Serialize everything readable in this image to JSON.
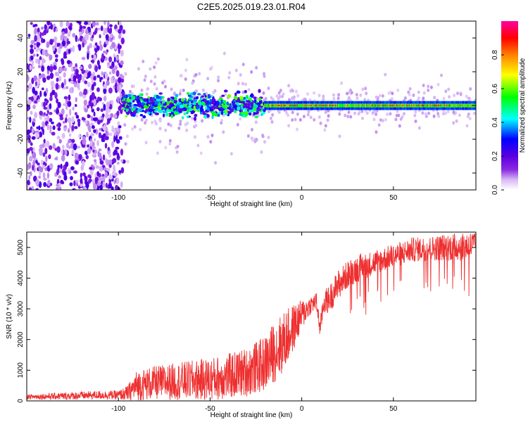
{
  "title": "C2E5.2025.019.23.01.R04",
  "chart_data": [
    {
      "type": "heatmap",
      "xlabel": "Height of straight line (km)",
      "ylabel": "Frequency (Hz)",
      "xlim": [
        -150,
        95
      ],
      "ylim": [
        -50,
        50
      ],
      "xticks": [
        -100,
        -50,
        0,
        50
      ],
      "yticks": [
        -40,
        -20,
        0,
        20,
        40
      ],
      "colorbar": {
        "label": "Normalized spectral amplitude",
        "range": [
          0,
          1
        ],
        "ticks": [
          0.0,
          0.2,
          0.4,
          0.6,
          0.8
        ],
        "colormap": [
          "#ffffff",
          "#d9b8f5",
          "#8a2be2",
          "#5a00e0",
          "#0000ff",
          "#00ffff",
          "#00ff00",
          "#ffff00",
          "#ff8000",
          "#ff0000",
          "#ff00a0"
        ]
      },
      "features": [
        {
          "x_range": [
            -150,
            -97
          ],
          "description": "broadband noise",
          "peak_amplitude": 0.1
        },
        {
          "x_range": [
            -97,
            -20
          ],
          "center_frequency": 0,
          "bandwidth_hz": 12,
          "peak_amplitude": 0.45
        },
        {
          "x_range": [
            -20,
            95
          ],
          "center_frequency": 0,
          "bandwidth_hz": 4,
          "peak_amplitude": 0.95
        }
      ]
    },
    {
      "type": "line",
      "xlabel": "Height of straight line (km)",
      "ylabel": "SNR (10 * v/v)",
      "xlim": [
        -150,
        95
      ],
      "ylim": [
        0,
        5500
      ],
      "xticks": [
        -100,
        -50,
        0,
        50
      ],
      "yticks": [
        0,
        1000,
        2000,
        3000,
        4000,
        5000
      ],
      "series": [
        {
          "color": "#ee3030",
          "x": [
            -150,
            -130,
            -110,
            -100,
            -95,
            -90,
            -80,
            -70,
            -60,
            -50,
            -40,
            -30,
            -20,
            -15,
            -10,
            -5,
            0,
            5,
            8,
            10,
            12,
            15,
            20,
            25,
            30,
            40,
            50,
            60,
            70,
            80,
            90,
            95
          ],
          "y": [
            150,
            180,
            220,
            220,
            300,
            600,
            700,
            750,
            800,
            850,
            950,
            1100,
            1400,
            1800,
            2100,
            2500,
            2900,
            3200,
            3300,
            2400,
            3300,
            3400,
            3900,
            4200,
            4400,
            4600,
            4800,
            5000,
            5050,
            5100,
            5150,
            5150
          ],
          "noise_amplitude": [
            80,
            120,
            140,
            150,
            250,
            500,
            550,
            600,
            650,
            700,
            750,
            800,
            900,
            1000,
            1000,
            800,
            500,
            300,
            300,
            300,
            400,
            450,
            500,
            450,
            450,
            400,
            400,
            400,
            400,
            450,
            500,
            500
          ]
        }
      ]
    }
  ]
}
